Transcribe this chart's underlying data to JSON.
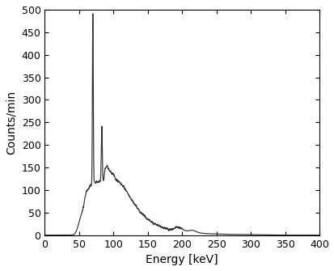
{
  "xlabel": "Energy [keV]",
  "ylabel": "Counts/min",
  "xlim": [
    0,
    400
  ],
  "ylim": [
    0,
    500
  ],
  "xticks": [
    0,
    50,
    100,
    150,
    200,
    250,
    300,
    350,
    400
  ],
  "yticks": [
    0,
    50,
    100,
    150,
    200,
    250,
    300,
    350,
    400,
    450,
    500
  ],
  "line_color": "#303030",
  "background_color": "#ffffff",
  "linewidth": 0.85,
  "figsize": [
    4.14,
    3.35
  ],
  "dpi": 100
}
